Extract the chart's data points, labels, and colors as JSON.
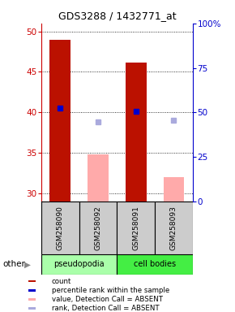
{
  "title": "GDS3288 / 1432771_at",
  "samples": [
    "GSM258090",
    "GSM258092",
    "GSM258091",
    "GSM258093"
  ],
  "ylim_left": [
    29,
    51
  ],
  "ylim_right": [
    0,
    100
  ],
  "yticks_left": [
    30,
    35,
    40,
    45,
    50
  ],
  "yticks_right": [
    0,
    25,
    50,
    75,
    100
  ],
  "bar_values": [
    49.0,
    null,
    46.2,
    null
  ],
  "rank_dots": [
    40.5,
    null,
    40.1,
    null
  ],
  "absent_bars": [
    null,
    34.8,
    null,
    32.0
  ],
  "absent_rank_dots": [
    null,
    38.8,
    null,
    39.0
  ],
  "bar_width": 0.55,
  "legend_items": [
    {
      "label": "count",
      "color": "#bb1100"
    },
    {
      "label": "percentile rank within the sample",
      "color": "#0000cc"
    },
    {
      "label": "value, Detection Call = ABSENT",
      "color": "#ffaaaa"
    },
    {
      "label": "rank, Detection Call = ABSENT",
      "color": "#aaaadd"
    }
  ],
  "group_label_pseudopodia": "pseudopodia",
  "group_label_cell_bodies": "cell bodies",
  "other_label": "other",
  "left_axis_color": "#cc0000",
  "right_axis_color": "#0000cc",
  "pseudopodia_color": "#aaffaa",
  "cell_bodies_color": "#44ee44"
}
